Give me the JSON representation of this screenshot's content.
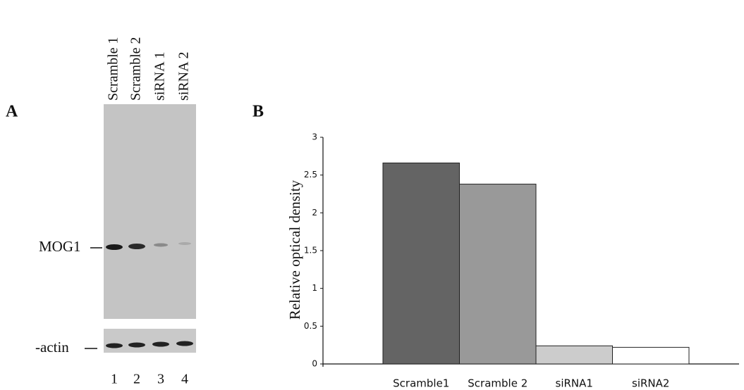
{
  "panel_a": {
    "label": "A",
    "lane_labels": [
      "Scramble 1",
      "Scramble 2",
      "siRNA 1",
      "siRNA 2"
    ],
    "band_labels": [
      "MOG1",
      "-actin"
    ],
    "lane_numbers": [
      "1",
      "2",
      "3",
      "4"
    ]
  },
  "chart_data": {
    "type": "bar",
    "label": "B",
    "y_label": "Relative optical density",
    "categories": [
      "Scramble1",
      "Scramble 2",
      "siRNA1",
      "siRNA2"
    ],
    "values": [
      2.66,
      2.38,
      0.24,
      0.22
    ],
    "colors": [
      "#646464",
      "#999999",
      "#cccccc",
      "#ffffff"
    ],
    "ylim": [
      0,
      3
    ],
    "yticks": [
      0,
      0.5,
      1,
      1.5,
      2,
      2.5,
      3
    ],
    "grid": false
  }
}
